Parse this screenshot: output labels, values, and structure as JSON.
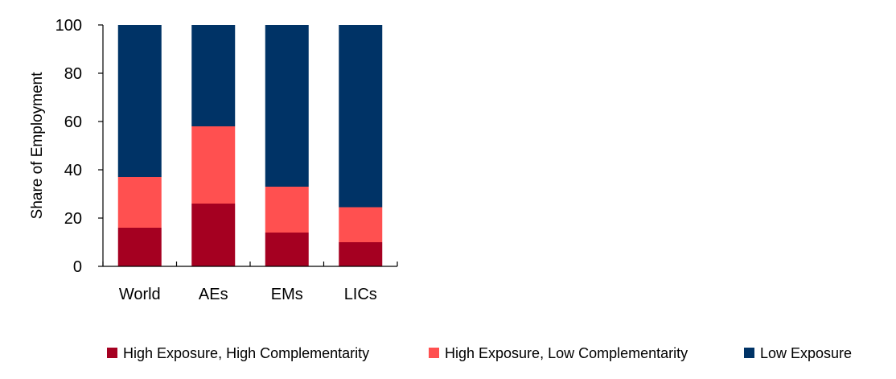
{
  "chart_data": {
    "type": "bar",
    "stacked": true,
    "title": "",
    "xlabel": "",
    "ylabel": "Share of Employment",
    "ylim": [
      0,
      100
    ],
    "yticks": [
      0,
      20,
      40,
      60,
      80,
      100
    ],
    "categories": [
      "World",
      "AEs",
      "EMs",
      "LICs"
    ],
    "series": [
      {
        "name": "High Exposure, High Complementarity",
        "color": "#A50021",
        "values": [
          16,
          26,
          14,
          10
        ]
      },
      {
        "name": "High Exposure, Low Complementarity",
        "color": "#FF5050",
        "values": [
          21,
          32,
          19,
          14.5
        ]
      },
      {
        "name": "Low Exposure",
        "color": "#003366",
        "values": [
          63,
          42,
          67,
          75.5
        ]
      }
    ],
    "grid": false,
    "legend_position": "bottom"
  }
}
